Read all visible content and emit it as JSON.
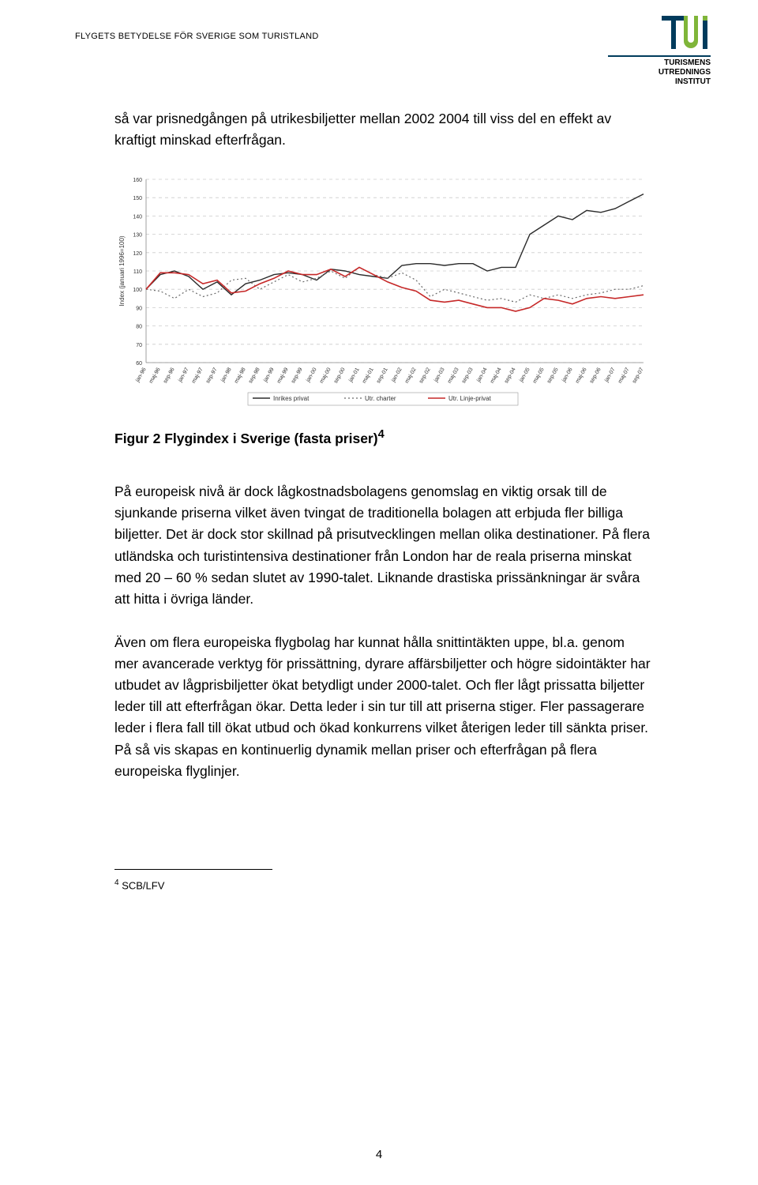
{
  "header": {
    "running_title": "FLYGETS BETYDELSE FÖR SVERIGE SOM TURISTLAND"
  },
  "logo": {
    "brand_top": "T",
    "brand_letters": "UI",
    "line1": "TURISMENS",
    "line2": "UTREDNINGS",
    "line3": "INSTITUT",
    "accent_color": "#7fb539",
    "text_color": "#003b5c"
  },
  "paragraphs": {
    "p1": "så var prisnedgången på utrikesbiljetter mellan 2002 2004 till viss del en effekt av kraftigt minskad efterfrågan.",
    "caption": "Figur 2 Flygindex i Sverige (fasta priser)",
    "caption_sup": "4",
    "p2": "På europeisk nivå är dock lågkostnadsbolagens genomslag en viktig orsak till de sjunkande priserna vilket även tvingat de traditionella bolagen att erbjuda fler billiga biljetter. Det är dock stor skillnad på prisutvecklingen mellan olika destinationer. På flera utländska och turistintensiva destinationer från London har de reala priserna minskat med 20 – 60 % sedan slutet av 1990-talet. Liknande drastiska prissänkningar är svåra att hitta i övriga länder.",
    "p3": "Även om flera europeiska flygbolag har kunnat hålla snittintäkten uppe, bl.a. genom mer avancerade verktyg för prissättning, dyrare affärsbiljetter och högre sidointäkter har utbudet av lågprisbiljetter ökat betydligt under 2000-talet. Och fler lågt prissatta biljetter leder till att efterfrågan ökar. Detta leder i sin tur till att priserna stiger. Fler passagerare leder i flera fall till ökat utbud och ökad konkurrens vilket återigen leder till sänkta priser. På så vis skapas en kontinuerlig dynamik mellan priser och efterfrågan på flera europeiska flyglinjer."
  },
  "footnote": {
    "num": "4",
    "text": "SCB/LFV"
  },
  "page_number": "4",
  "chart": {
    "type": "line",
    "background_color": "#ffffff",
    "grid_color": "#cccccc",
    "ylabel": "Index (januari 1996=100)",
    "ylim": [
      60,
      160
    ],
    "ytick_step": 10,
    "yticks": [
      60,
      70,
      80,
      90,
      100,
      110,
      120,
      130,
      140,
      150,
      160
    ],
    "x_labels": [
      "jan-96",
      "maj-96",
      "sep-96",
      "jan-97",
      "maj-97",
      "sep-97",
      "jan-98",
      "maj-98",
      "sep-98",
      "jan-99",
      "maj-99",
      "sep-99",
      "jan-00",
      "maj-00",
      "sep-00",
      "jan-01",
      "maj-01",
      "sep-01",
      "jan-02",
      "maj-02",
      "sep-02",
      "jan-03",
      "maj-03",
      "sep-03",
      "jan-04",
      "maj-04",
      "sep-04",
      "jan-05",
      "maj-05",
      "sep-05",
      "jan-06",
      "maj-06",
      "sep-06",
      "jan-07",
      "maj-07",
      "sep-07"
    ],
    "legend": [
      {
        "label": "Inrikes privat",
        "color": "#2b2b2b",
        "dash": "solid",
        "width": 1.4
      },
      {
        "label": "Utr. charter",
        "color": "#6b6b6b",
        "dash": "dotted",
        "width": 1.2
      },
      {
        "label": "Utr. Linje-privat",
        "color": "#c62828",
        "dash": "solid",
        "width": 1.6
      }
    ],
    "series": {
      "inrikes": [
        100,
        108,
        110,
        107,
        100,
        104,
        97,
        103,
        105,
        108,
        109,
        108,
        105,
        111,
        110,
        108,
        107,
        106,
        113,
        114,
        114,
        113,
        114,
        114,
        110,
        112,
        112,
        130,
        135,
        140,
        138,
        143,
        142,
        144,
        148,
        152
      ],
      "utr_charter": [
        100,
        99,
        95,
        100,
        96,
        98,
        105,
        106,
        100,
        104,
        108,
        104,
        106,
        110,
        106,
        112,
        108,
        106,
        109,
        105,
        96,
        100,
        98,
        96,
        94,
        95,
        93,
        97,
        95,
        97,
        95,
        97,
        98,
        100,
        100,
        102
      ],
      "utr_linje": [
        100,
        109,
        109,
        108,
        103,
        105,
        98,
        99,
        103,
        106,
        110,
        108,
        108,
        111,
        107,
        112,
        108,
        104,
        101,
        99,
        94,
        93,
        94,
        92,
        90,
        90,
        88,
        90,
        95,
        94,
        92,
        95,
        96,
        95,
        96,
        97
      ]
    },
    "colors": {
      "inrikes": "#2b2b2b",
      "utr_charter": "#6b6b6b",
      "utr_linje": "#c62828"
    }
  }
}
